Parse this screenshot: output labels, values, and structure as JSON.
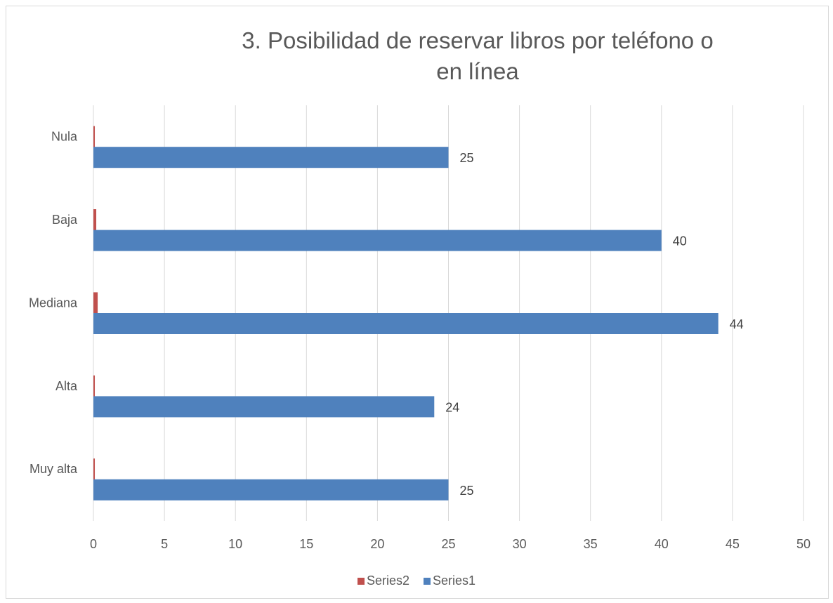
{
  "chart_data": {
    "type": "bar",
    "orientation": "horizontal",
    "title": "3. Posibilidad de reservar libros por teléfono o en línea",
    "title_lines": [
      "3. Posibilidad de reservar libros por teléfono o",
      "en línea"
    ],
    "categories": [
      "Nula",
      "Baja",
      "Mediana",
      "Alta",
      "Muy alta"
    ],
    "series": [
      {
        "name": "Series2",
        "values": [
          0.1,
          0.2,
          0.3,
          0.1,
          0.1
        ],
        "color": "#c0504d"
      },
      {
        "name": "Series1",
        "values": [
          25,
          40,
          44,
          24,
          25
        ],
        "color": "#4f81bd",
        "data_labels": [
          "25",
          "40",
          "44",
          "24",
          "25"
        ]
      }
    ],
    "xlim": [
      0,
      50
    ],
    "x_ticks": [
      "0",
      "5",
      "10",
      "15",
      "20",
      "25",
      "30",
      "35",
      "40",
      "45",
      "50"
    ],
    "grid": true,
    "legend_position": "bottom",
    "legend": [
      "Series2",
      "Series1"
    ]
  }
}
